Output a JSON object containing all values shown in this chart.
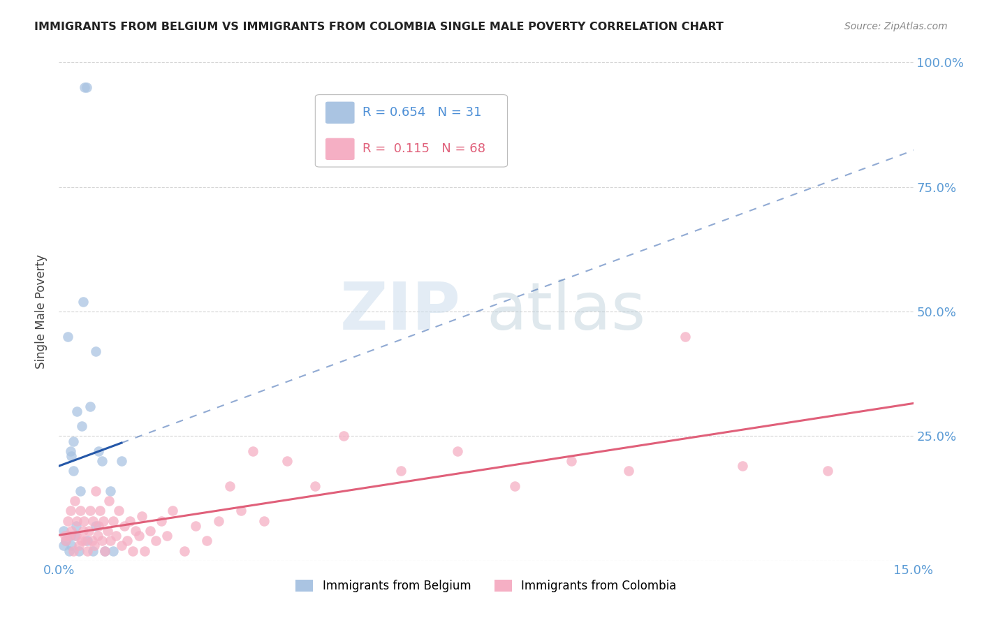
{
  "title": "IMMIGRANTS FROM BELGIUM VS IMMIGRANTS FROM COLOMBIA SINGLE MALE POVERTY CORRELATION CHART",
  "source": "Source: ZipAtlas.com",
  "ylabel": "Single Male Poverty",
  "xlim": [
    0.0,
    0.15
  ],
  "ylim": [
    0.0,
    1.0
  ],
  "belgium_R": "0.654",
  "belgium_N": "31",
  "colombia_R": "0.115",
  "colombia_N": "68",
  "belgium_color": "#aac4e2",
  "colombia_color": "#f5afc4",
  "belgium_line_color": "#2457a8",
  "colombia_line_color": "#e0607a",
  "legend_text_color_blue": "#4d8fd6",
  "legend_text_color_pink": "#e0607a",
  "watermark_zip": "ZIP",
  "watermark_atlas": "atlas",
  "belgium_x": [
    0.0008,
    0.0008,
    0.0012,
    0.0015,
    0.0018,
    0.002,
    0.002,
    0.0022,
    0.0022,
    0.0025,
    0.0025,
    0.0028,
    0.003,
    0.0032,
    0.0035,
    0.0038,
    0.004,
    0.0042,
    0.0045,
    0.0048,
    0.005,
    0.0055,
    0.006,
    0.0065,
    0.0065,
    0.007,
    0.0075,
    0.008,
    0.009,
    0.0095,
    0.011
  ],
  "belgium_y": [
    0.03,
    0.06,
    0.04,
    0.45,
    0.02,
    0.05,
    0.22,
    0.03,
    0.21,
    0.18,
    0.24,
    0.05,
    0.07,
    0.3,
    0.02,
    0.14,
    0.27,
    0.52,
    0.95,
    0.95,
    0.04,
    0.31,
    0.02,
    0.42,
    0.07,
    0.22,
    0.2,
    0.02,
    0.14,
    0.02,
    0.2
  ],
  "colombia_x": [
    0.001,
    0.0012,
    0.0015,
    0.0018,
    0.002,
    0.0022,
    0.0025,
    0.0028,
    0.003,
    0.0032,
    0.0035,
    0.0038,
    0.004,
    0.0042,
    0.0044,
    0.0046,
    0.005,
    0.0052,
    0.0055,
    0.0058,
    0.006,
    0.0062,
    0.0065,
    0.0068,
    0.007,
    0.0072,
    0.0075,
    0.0078,
    0.008,
    0.0085,
    0.0088,
    0.009,
    0.0095,
    0.01,
    0.0105,
    0.011,
    0.0115,
    0.012,
    0.0125,
    0.013,
    0.0135,
    0.014,
    0.0145,
    0.015,
    0.016,
    0.017,
    0.018,
    0.019,
    0.02,
    0.022,
    0.024,
    0.026,
    0.028,
    0.03,
    0.032,
    0.034,
    0.036,
    0.04,
    0.045,
    0.05,
    0.06,
    0.07,
    0.08,
    0.09,
    0.1,
    0.11,
    0.12,
    0.135
  ],
  "colombia_y": [
    0.05,
    0.04,
    0.08,
    0.05,
    0.1,
    0.06,
    0.02,
    0.12,
    0.05,
    0.08,
    0.03,
    0.1,
    0.04,
    0.06,
    0.08,
    0.04,
    0.02,
    0.06,
    0.1,
    0.04,
    0.08,
    0.03,
    0.14,
    0.05,
    0.07,
    0.1,
    0.04,
    0.08,
    0.02,
    0.06,
    0.12,
    0.04,
    0.08,
    0.05,
    0.1,
    0.03,
    0.07,
    0.04,
    0.08,
    0.02,
    0.06,
    0.05,
    0.09,
    0.02,
    0.06,
    0.04,
    0.08,
    0.05,
    0.1,
    0.02,
    0.07,
    0.04,
    0.08,
    0.15,
    0.1,
    0.22,
    0.08,
    0.2,
    0.15,
    0.25,
    0.18,
    0.22,
    0.15,
    0.2,
    0.18,
    0.45,
    0.19,
    0.18
  ]
}
